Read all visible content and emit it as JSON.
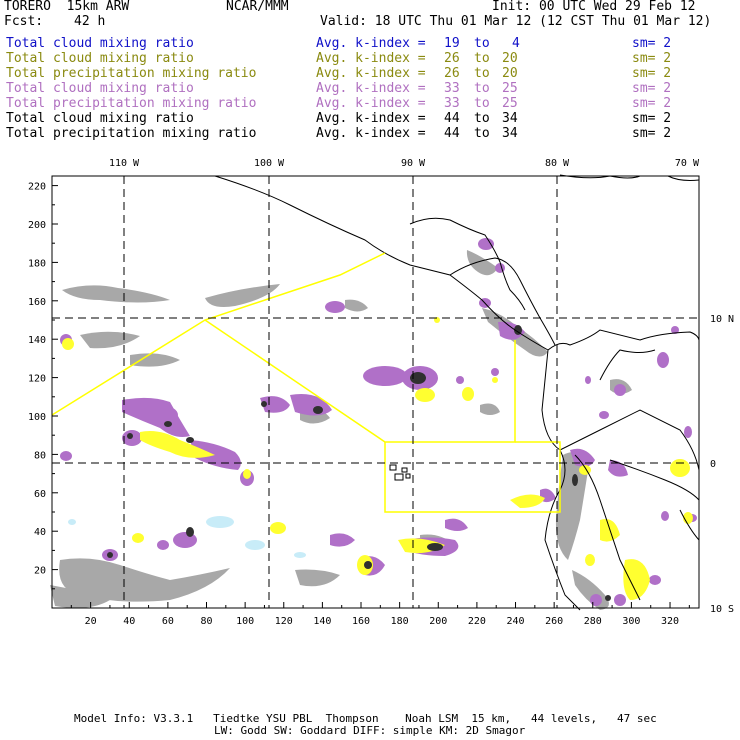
{
  "header": {
    "model": "TORERO  15km ARW",
    "center": "NCAR/MMM",
    "init": "Init: 00 UTC Wed 29 Feb 12",
    "fcst_label": "Fcst:",
    "fcst_value": "42 h",
    "valid": "Valid: 18 UTC Thu 01 Mar 12 (12 CST Thu 01 Mar 12)"
  },
  "legend": [
    {
      "field": "Total cloud mixing ratio",
      "kindex": "Avg. k-index =",
      "k1": "19",
      "to": "to",
      "k2": "4",
      "sm": "sm= 2",
      "color": "#1010c8"
    },
    {
      "field": "Total cloud mixing ratio",
      "kindex": "Avg. k-index =",
      "k1": "26",
      "to": "to",
      "k2": "20",
      "sm": "sm= 2",
      "color": "#8a8a10"
    },
    {
      "field": "Total precipitation mixing ratio",
      "kindex": "Avg. k-index =",
      "k1": "26",
      "to": "to",
      "k2": "20",
      "sm": "sm= 2",
      "color": "#8a8a10"
    },
    {
      "field": "Total cloud mixing ratio",
      "kindex": "Avg. k-index =",
      "k1": "33",
      "to": "to",
      "k2": "25",
      "sm": "sm= 2",
      "color": "#b070c0"
    },
    {
      "field": "Total precipitation mixing ratio",
      "kindex": "Avg. k-index =",
      "k1": "33",
      "to": "to",
      "k2": "25",
      "sm": "sm= 2",
      "color": "#b070c0"
    },
    {
      "field": "Total cloud mixing ratio",
      "kindex": "Avg. k-index =",
      "k1": "44",
      "to": "to",
      "k2": "34",
      "sm": "sm= 2",
      "color": "#000000"
    },
    {
      "field": "Total precipitation mixing ratio",
      "kindex": "Avg. k-index =",
      "k1": "44",
      "to": "to",
      "k2": "34",
      "sm": "sm= 2",
      "color": "#000000"
    }
  ],
  "map": {
    "lon_labels": [
      "110 W",
      "100 W",
      "90 W",
      "80 W",
      "70 W"
    ],
    "lat_labels": [
      "10 N",
      "0",
      "10 S"
    ],
    "x_ticks": [
      "20",
      "40",
      "60",
      "80",
      "100",
      "120",
      "140",
      "160",
      "180",
      "200",
      "220",
      "240",
      "260",
      "280",
      "300",
      "320"
    ],
    "y_ticks": [
      "20",
      "40",
      "60",
      "80",
      "100",
      "120",
      "140",
      "160",
      "180",
      "200",
      "220"
    ],
    "x_range": [
      0,
      335
    ],
    "y_range": [
      0,
      225
    ],
    "colors": {
      "gray": "#a8a8a8",
      "dark": "#303030",
      "purple": "#b070c8",
      "yellow": "#ffff30",
      "cyan": "#c8ecf8",
      "outline": "#ffff00"
    }
  },
  "footer": {
    "line1": "Model Info: V3.3.1   Tiedtke YSU PBL  Thompson    Noah LSM  15 km,   44 levels,   47 sec",
    "line2": "LW: Godd SW: Goddard DIFF: simple KM: 2D Smagor"
  }
}
